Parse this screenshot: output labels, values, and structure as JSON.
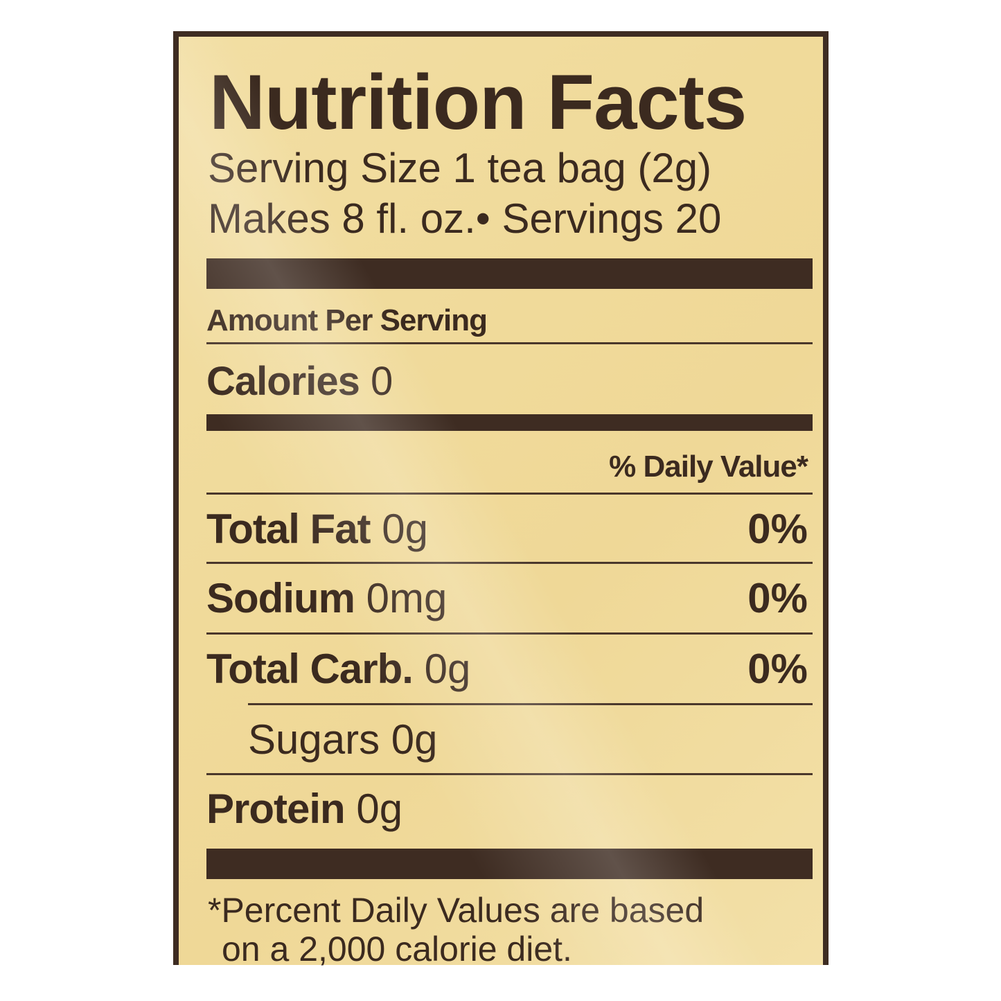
{
  "title": "Nutrition Facts",
  "serving_size": "Serving Size 1 tea bag (2g)",
  "makes": "Makes 8 fl. oz.• Servings 20",
  "amount_per_serving": "Amount Per Serving",
  "calories": {
    "label": "Calories",
    "value": "0"
  },
  "daily_value_header": "% Daily Value*",
  "nutrients": [
    {
      "label": "Total Fat",
      "amount": "0g",
      "dv": "0%"
    },
    {
      "label": "Sodium",
      "amount": "0mg",
      "dv": "0%"
    },
    {
      "label": "Total Carb.",
      "amount": "0g",
      "dv": "0%"
    },
    {
      "label": "Sugars",
      "amount": "0g",
      "dv": ""
    },
    {
      "label": "Protein",
      "amount": "0g",
      "dv": ""
    }
  ],
  "footnote_line1": "*Percent Daily Values are based",
  "footnote_line2": "on a 2,000 calorie diet.",
  "colors": {
    "ink": "#3e2c22",
    "background": "#f0da9a"
  }
}
